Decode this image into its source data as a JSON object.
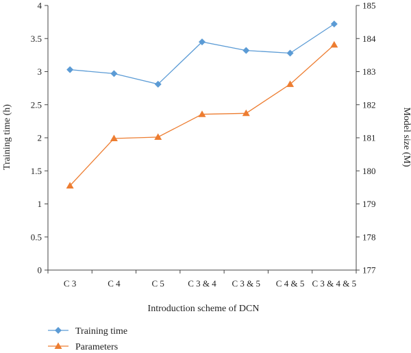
{
  "chart_data": {
    "type": "line",
    "title": "",
    "xlabel": "Introduction scheme of DCN",
    "ylabel_left": "Training time (h)",
    "ylabel_right": "Model size (M)",
    "categories": [
      "C 3",
      "C 4",
      "C 5",
      "C 3 & 4",
      "C 3 & 5",
      "C 4 & 5",
      "C 3 & 4 & 5"
    ],
    "ylim_left": [
      0,
      4
    ],
    "ylim_right": [
      177,
      185
    ],
    "yticks_left": [
      0,
      0.5,
      1,
      1.5,
      2,
      2.5,
      3,
      3.5,
      4
    ],
    "yticks_right": [
      177,
      178,
      179,
      180,
      181,
      182,
      183,
      184,
      185
    ],
    "grid": false,
    "legend_position": "bottom-left",
    "series": [
      {
        "name": "Training time",
        "axis": "left",
        "marker": "diamond",
        "color": "#5b9bd5",
        "values": [
          3.03,
          2.97,
          2.81,
          3.45,
          3.32,
          3.28,
          3.72
        ]
      },
      {
        "name": "Parameters",
        "axis": "right",
        "marker": "triangle",
        "color": "#ed7d31",
        "values": [
          179.55,
          180.98,
          181.02,
          181.71,
          181.74,
          182.62,
          183.81
        ]
      }
    ]
  }
}
